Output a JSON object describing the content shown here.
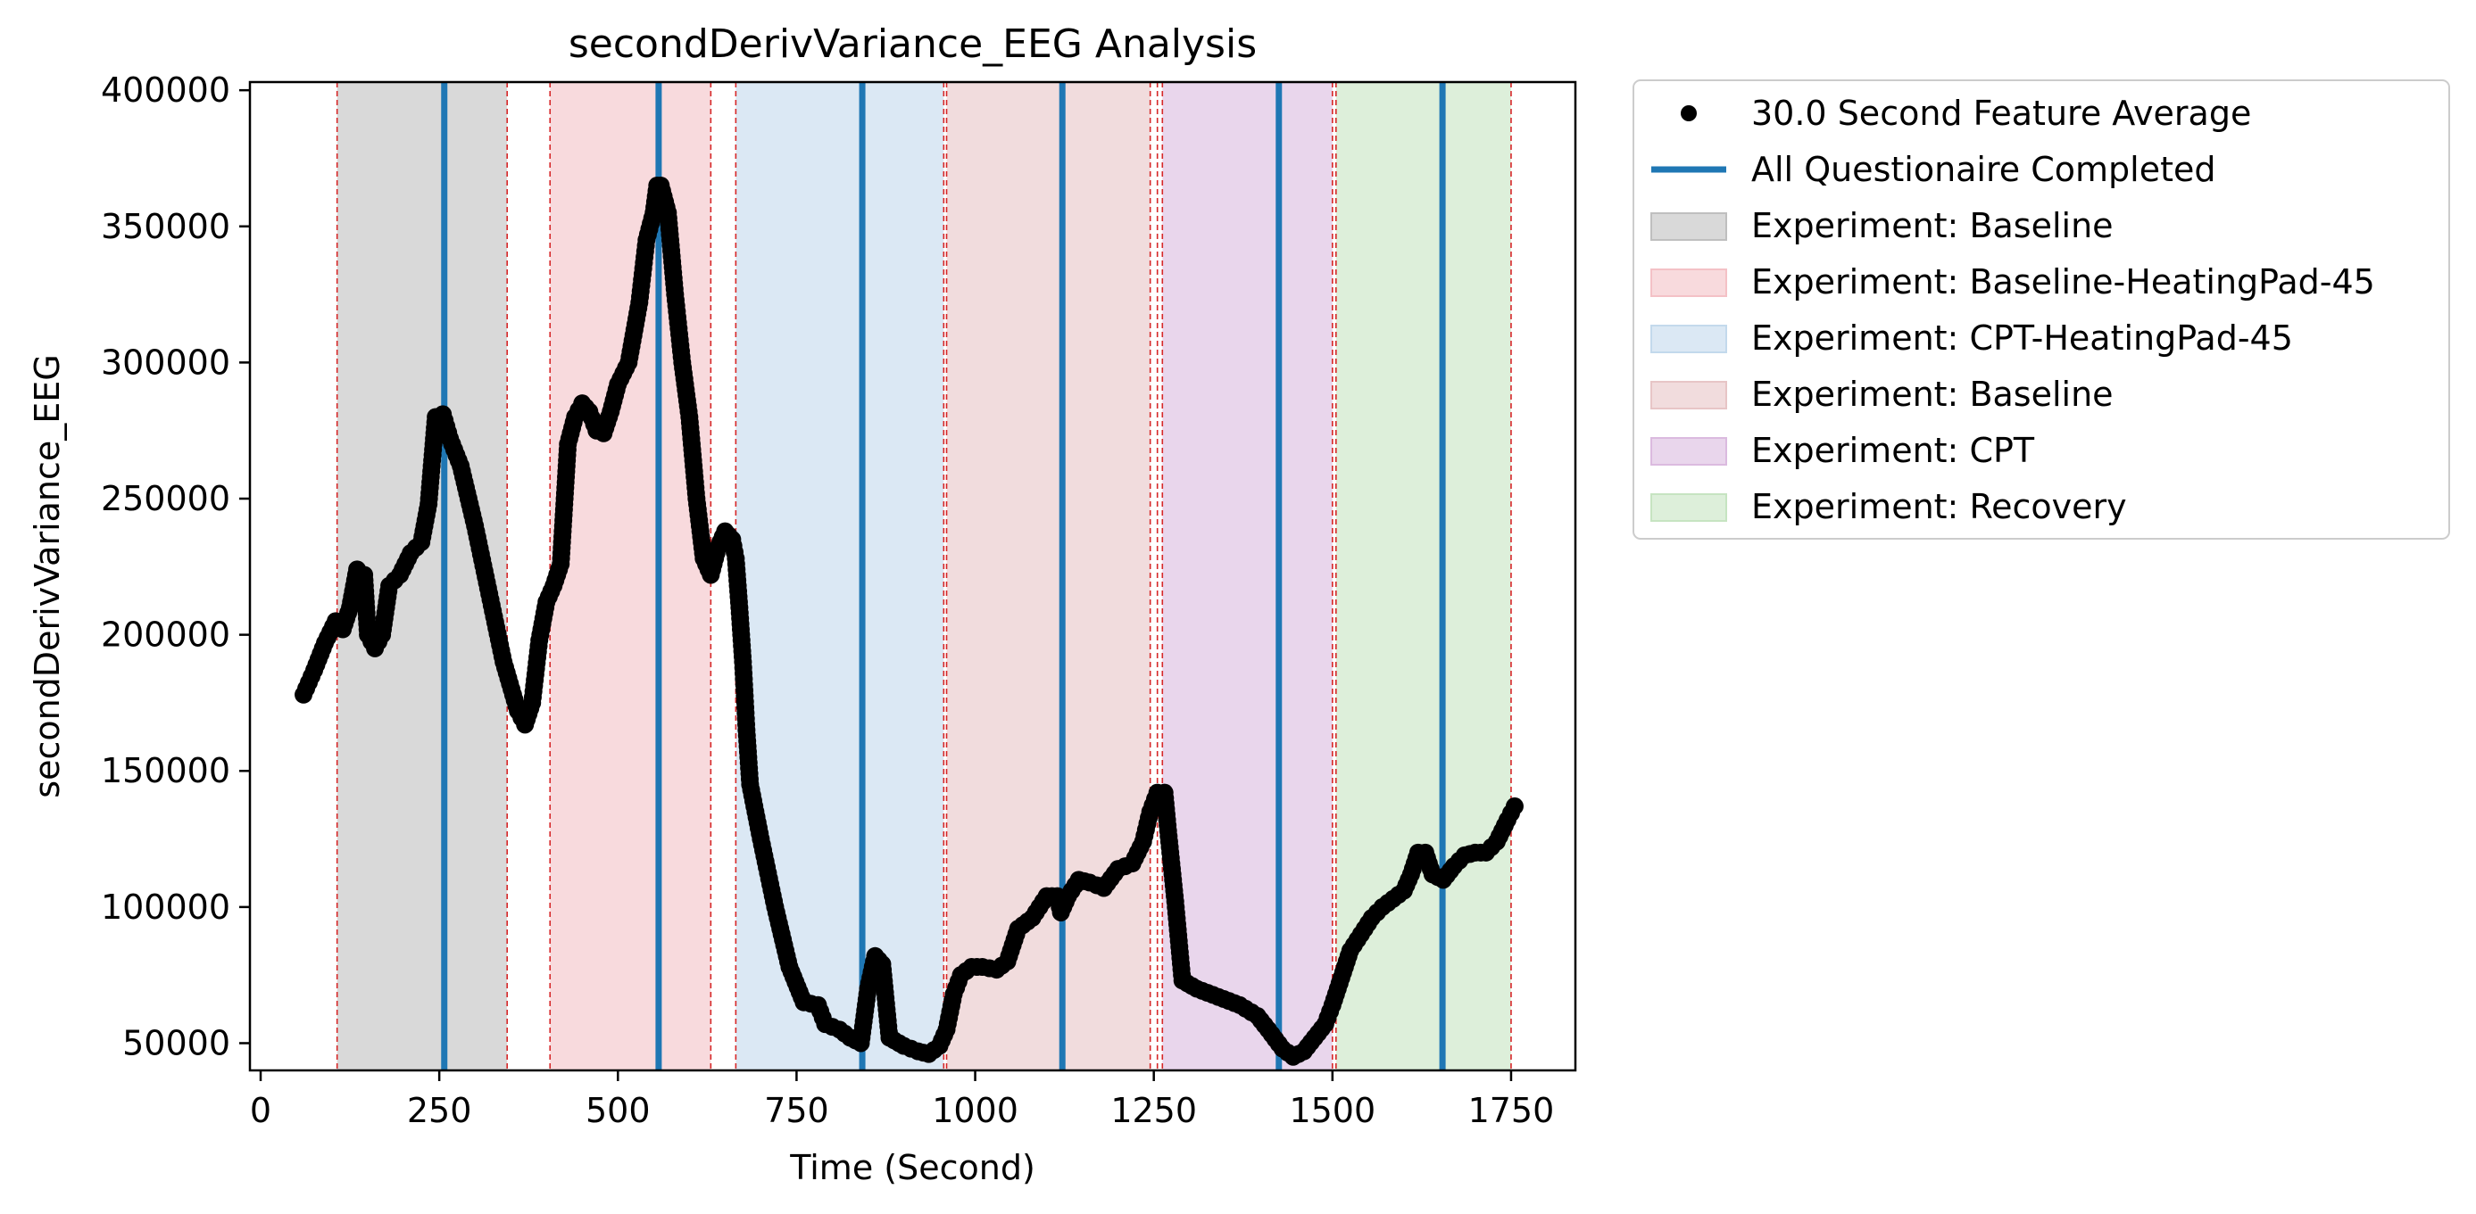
{
  "chart_data": {
    "type": "scatter",
    "title": "secondDerivVariance_EEG Analysis",
    "xlabel": "Time (Second)",
    "ylabel": "secondDerivVariance_EEG",
    "xlim": [
      -15,
      1840
    ],
    "ylim": [
      40000,
      403000
    ],
    "xticks": [
      0,
      250,
      500,
      750,
      1000,
      1250,
      1500,
      1750
    ],
    "yticks": [
      50000,
      100000,
      150000,
      200000,
      250000,
      300000,
      350000,
      400000
    ],
    "xtick_labels": [
      "0",
      "250",
      "500",
      "750",
      "1000",
      "1250",
      "1500",
      "1750"
    ],
    "ytick_labels": [
      "50000",
      "100000",
      "150000",
      "200000",
      "250000",
      "300000",
      "350000",
      "400000"
    ],
    "grid": false,
    "legend_position": "outside-right-top",
    "series": [
      {
        "name": "30.0 Second Feature Average",
        "kind": "scatter",
        "color": "#000000",
        "points": [
          [
            60,
            178000
          ],
          [
            75,
            187000
          ],
          [
            90,
            197000
          ],
          [
            105,
            205000
          ],
          [
            115,
            202000
          ],
          [
            125,
            210000
          ],
          [
            135,
            224000
          ],
          [
            145,
            222000
          ],
          [
            150,
            200000
          ],
          [
            160,
            195000
          ],
          [
            170,
            200000
          ],
          [
            180,
            218000
          ],
          [
            195,
            222000
          ],
          [
            210,
            230000
          ],
          [
            225,
            234000
          ],
          [
            235,
            248000
          ],
          [
            245,
            280000
          ],
          [
            255,
            281000
          ],
          [
            265,
            272000
          ],
          [
            280,
            262000
          ],
          [
            300,
            240000
          ],
          [
            320,
            215000
          ],
          [
            340,
            190000
          ],
          [
            360,
            172000
          ],
          [
            370,
            167000
          ],
          [
            380,
            175000
          ],
          [
            390,
            198000
          ],
          [
            400,
            212000
          ],
          [
            410,
            218000
          ],
          [
            420,
            226000
          ],
          [
            430,
            270000
          ],
          [
            440,
            280000
          ],
          [
            450,
            285000
          ],
          [
            460,
            282000
          ],
          [
            470,
            275000
          ],
          [
            480,
            274000
          ],
          [
            490,
            282000
          ],
          [
            500,
            292000
          ],
          [
            515,
            300000
          ],
          [
            530,
            322000
          ],
          [
            540,
            345000
          ],
          [
            550,
            355000
          ],
          [
            555,
            365000
          ],
          [
            560,
            365000
          ],
          [
            570,
            355000
          ],
          [
            580,
            325000
          ],
          [
            590,
            300000
          ],
          [
            600,
            280000
          ],
          [
            610,
            250000
          ],
          [
            620,
            228000
          ],
          [
            630,
            222000
          ],
          [
            640,
            232000
          ],
          [
            650,
            238000
          ],
          [
            660,
            235000
          ],
          [
            665,
            228000
          ],
          [
            670,
            210000
          ],
          [
            675,
            190000
          ],
          [
            680,
            165000
          ],
          [
            685,
            145000
          ],
          [
            700,
            125000
          ],
          [
            720,
            100000
          ],
          [
            740,
            78000
          ],
          [
            760,
            65000
          ],
          [
            780,
            64000
          ],
          [
            790,
            57000
          ],
          [
            810,
            55000
          ],
          [
            825,
            52000
          ],
          [
            840,
            50000
          ],
          [
            850,
            70000
          ],
          [
            860,
            82000
          ],
          [
            870,
            79000
          ],
          [
            880,
            52000
          ],
          [
            900,
            49000
          ],
          [
            920,
            47000
          ],
          [
            935,
            46000
          ],
          [
            950,
            49000
          ],
          [
            960,
            55000
          ],
          [
            970,
            68000
          ],
          [
            980,
            75000
          ],
          [
            995,
            78000
          ],
          [
            1010,
            78000
          ],
          [
            1030,
            77000
          ],
          [
            1045,
            80000
          ],
          [
            1060,
            92000
          ],
          [
            1080,
            96000
          ],
          [
            1100,
            104000
          ],
          [
            1115,
            104000
          ],
          [
            1120,
            98000
          ],
          [
            1130,
            104000
          ],
          [
            1145,
            110000
          ],
          [
            1160,
            109000
          ],
          [
            1180,
            107000
          ],
          [
            1200,
            114000
          ],
          [
            1220,
            116000
          ],
          [
            1235,
            124000
          ],
          [
            1245,
            135000
          ],
          [
            1255,
            142000
          ],
          [
            1265,
            142000
          ],
          [
            1270,
            128000
          ],
          [
            1280,
            102000
          ],
          [
            1290,
            73000
          ],
          [
            1310,
            70000
          ],
          [
            1340,
            67000
          ],
          [
            1370,
            64000
          ],
          [
            1395,
            60000
          ],
          [
            1410,
            55000
          ],
          [
            1430,
            48000
          ],
          [
            1445,
            45000
          ],
          [
            1460,
            47000
          ],
          [
            1475,
            52000
          ],
          [
            1490,
            57000
          ],
          [
            1500,
            64000
          ],
          [
            1510,
            72000
          ],
          [
            1525,
            84000
          ],
          [
            1540,
            90000
          ],
          [
            1555,
            96000
          ],
          [
            1570,
            100000
          ],
          [
            1585,
            103000
          ],
          [
            1600,
            106000
          ],
          [
            1610,
            112000
          ],
          [
            1620,
            120000
          ],
          [
            1630,
            120000
          ],
          [
            1640,
            112000
          ],
          [
            1655,
            110000
          ],
          [
            1670,
            115000
          ],
          [
            1685,
            119000
          ],
          [
            1700,
            120000
          ],
          [
            1715,
            120000
          ],
          [
            1730,
            124000
          ],
          [
            1745,
            132000
          ],
          [
            1755,
            137000
          ]
        ]
      },
      {
        "name": "All Questionaire Completed",
        "kind": "vline",
        "color": "#1f77b4",
        "x": [
          257,
          557,
          842,
          1122,
          1425,
          1654
        ]
      }
    ],
    "regions": [
      {
        "label": "Experiment: Baseline",
        "start": 107,
        "end": 345,
        "color": "#bfbfbf"
      },
      {
        "label": "Experiment: Baseline-HeatingPad-45",
        "start": 405,
        "end": 630,
        "color": "#f4c1c6"
      },
      {
        "label": "Experiment: CPT-HeatingPad-45",
        "start": 665,
        "end": 956,
        "color": "#c3d9ec"
      },
      {
        "label": "Experiment: Baseline",
        "start": 960,
        "end": 1245,
        "color": "#e7c5c6"
      },
      {
        "label": "Experiment: CPT",
        "start": 1262,
        "end": 1500,
        "color": "#dbbadf"
      },
      {
        "label": "Experiment: Recovery",
        "start": 1505,
        "end": 1750,
        "color": "#c6e4c1"
      }
    ],
    "boundaries": [
      107,
      345,
      405,
      630,
      665,
      956,
      960,
      1245,
      1255,
      1262,
      1500,
      1505,
      1750
    ],
    "boundary_color": "#d62728",
    "legend": [
      {
        "label": "30.0 Second Feature Average",
        "kind": "marker",
        "color": "#000000"
      },
      {
        "label": "All Questionaire Completed",
        "kind": "line",
        "color": "#1f77b4"
      },
      {
        "label": "Experiment: Baseline",
        "kind": "patch",
        "color": "#bfbfbf"
      },
      {
        "label": "Experiment: Baseline-HeatingPad-45",
        "kind": "patch",
        "color": "#f4c1c6"
      },
      {
        "label": "Experiment: CPT-HeatingPad-45",
        "kind": "patch",
        "color": "#c3d9ec"
      },
      {
        "label": "Experiment: Baseline",
        "kind": "patch",
        "color": "#e7c5c6"
      },
      {
        "label": "Experiment: CPT",
        "kind": "patch",
        "color": "#dbbadf"
      },
      {
        "label": "Experiment: Recovery",
        "kind": "patch",
        "color": "#c6e4c1"
      }
    ]
  }
}
